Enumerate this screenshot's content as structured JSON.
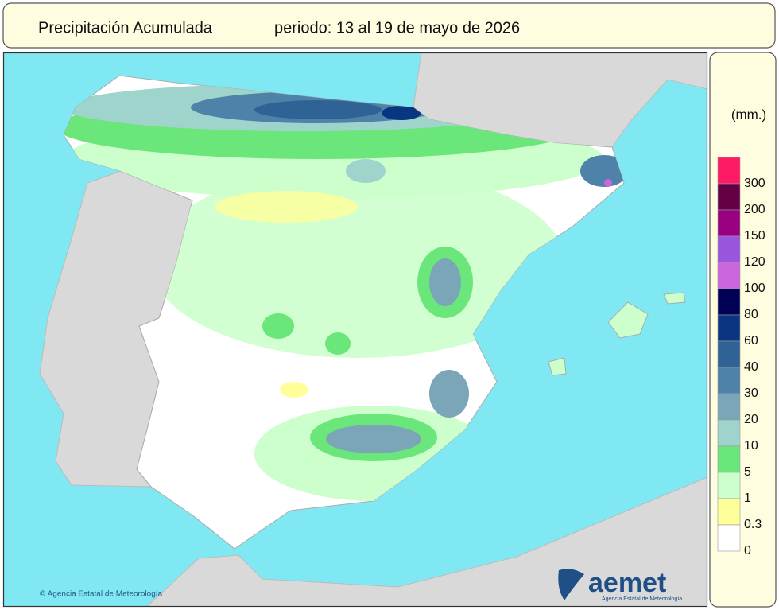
{
  "header": {
    "title": "Precipitación Acumulada",
    "period": "periodo: 13 al 19 de mayo de 2026"
  },
  "map": {
    "credit": "© Agencia Estatal de Meteorología",
    "logo": "aemet",
    "logo_subtitle": "Agencia Estatal de Meteorología"
  },
  "legend": {
    "unit": "(mm.)",
    "items": [
      {
        "label": "300",
        "color": "#ff1a66"
      },
      {
        "label": "200",
        "color": "#660044"
      },
      {
        "label": "150",
        "color": "#990080"
      },
      {
        "label": "120",
        "color": "#9955dd"
      },
      {
        "label": "100",
        "color": "#cc66dd"
      },
      {
        "label": "80",
        "color": "#000055"
      },
      {
        "label": "60",
        "color": "#0a3580"
      },
      {
        "label": "40",
        "color": "#2f6396"
      },
      {
        "label": "30",
        "color": "#4f82a8"
      },
      {
        "label": "20",
        "color": "#7aa6b8"
      },
      {
        "label": "10",
        "color": "#9fd4cc"
      },
      {
        "label": "5",
        "color": "#6be67a"
      },
      {
        "label": "1",
        "color": "#ccffcc"
      },
      {
        "label": "0.3",
        "color": "#ffff99"
      },
      {
        "label": "0",
        "color": "#ffffff"
      }
    ]
  }
}
